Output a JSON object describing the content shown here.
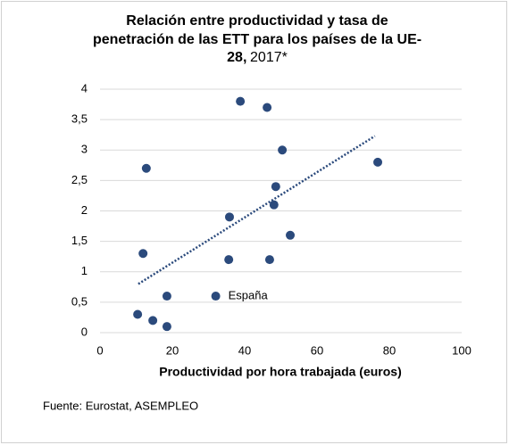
{
  "chart_data": {
    "type": "scatter",
    "title_lines": [
      "Relación entre productividad y tasa de",
      "penetración de las ETT para los países de la UE-",
      "28,"
    ],
    "title_date": "2017*",
    "xlabel": "Productividad por hora trabajada (euros)",
    "source": "Fuente: Eurostat, ASEMPLEO",
    "x": [
      10.4,
      14.6,
      18.5,
      18.5,
      11.9,
      12.8,
      32,
      35.8,
      35.6,
      38.8,
      46.2,
      46.9,
      48.6,
      48.1,
      50.4,
      52.6,
      76.8
    ],
    "values": [
      0.3,
      0.2,
      0.1,
      0.6,
      1.3,
      2.7,
      0.6,
      1.9,
      1.2,
      3.8,
      3.7,
      1.2,
      2.4,
      2.1,
      3.0,
      1.6,
      2.8
    ],
    "color": "#2b4a7c",
    "trendline": {
      "x": [
        10.6,
        76
      ],
      "y": [
        0.8,
        3.23
      ],
      "color": "#2b4a7c"
    },
    "annotations": [
      {
        "text": "España",
        "x": 32,
        "y": 0.6
      }
    ],
    "xlim": [
      0,
      100
    ],
    "xticks": [
      0,
      20,
      40,
      60,
      80,
      100
    ],
    "ylim": [
      0,
      4
    ],
    "yticks": [
      0,
      {
        "value": 0.5,
        "label": "0,5"
      },
      1,
      {
        "value": 1.5,
        "label": "1,5"
      },
      2,
      {
        "value": 2.5,
        "label": "2,5"
      },
      3,
      {
        "value": 3.5,
        "label": "3,5"
      },
      4
    ],
    "grid": true
  }
}
